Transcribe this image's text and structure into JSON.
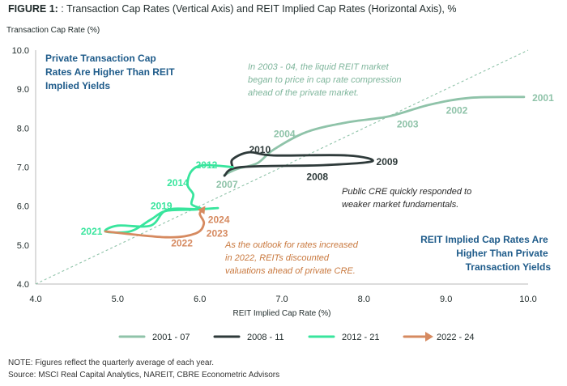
{
  "figure": {
    "label": "FIGURE 1:",
    "title": ": Transaction Cap Rates (Vertical Axis) and REIT Implied Cap Rates (Horizontal Axis), %"
  },
  "colors": {
    "s2001": "#8fc3a9",
    "s2008": "#2e3a3a",
    "s2012": "#38e59d",
    "s2022": "#d68a60",
    "axis_text": "#1f2a2a",
    "callout_blue": "#1e5b8a",
    "italic_teal": "#7fb69c",
    "italic_dark": "#2a2a2a",
    "italic_orange": "#c9793f",
    "diag": "#8fc3a9"
  },
  "chart_data": {
    "type": "line",
    "title": "Transaction Cap Rates (Vertical Axis) and REIT Implied Cap Rates (Horizontal Axis), %",
    "xlabel": "REIT Implied Cap Rate (%)",
    "ylabel": "Transaction Cap Rate (%)",
    "xlim": [
      4.0,
      10.0
    ],
    "ylim": [
      4.0,
      10.0
    ],
    "x_ticks": [
      "4.0",
      "5.0",
      "6.0",
      "7.0",
      "8.0",
      "9.0",
      "10.0"
    ],
    "y_ticks": [
      "4.0",
      "5.0",
      "6.0",
      "7.0",
      "8.0",
      "9.0",
      "10.0"
    ],
    "reference_line": {
      "label": "45-degree line",
      "from": [
        4.0,
        4.0
      ],
      "to": [
        10.0,
        10.0
      ]
    },
    "series": [
      {
        "name": "2001 - 07",
        "color_key": "s2001",
        "points": [
          [
            9.95,
            8.8
          ],
          [
            9.3,
            8.78
          ],
          [
            8.8,
            8.6
          ],
          [
            8.3,
            8.3
          ],
          [
            7.8,
            8.15
          ],
          [
            7.3,
            7.9
          ],
          [
            6.9,
            7.45
          ],
          [
            6.7,
            7.1
          ],
          [
            6.45,
            6.95
          ],
          [
            6.3,
            6.8
          ]
        ]
      },
      {
        "name": "2008 - 11",
        "color_key": "s2008",
        "points": [
          [
            6.3,
            6.78
          ],
          [
            6.5,
            7.0
          ],
          [
            7.5,
            7.05
          ],
          [
            8.1,
            7.15
          ],
          [
            7.8,
            7.3
          ],
          [
            6.9,
            7.3
          ],
          [
            6.6,
            7.38
          ],
          [
            6.4,
            7.2
          ],
          [
            6.4,
            7.0
          ]
        ]
      },
      {
        "name": "2012 - 21",
        "color_key": "s2012",
        "points": [
          [
            6.4,
            7.0
          ],
          [
            6.05,
            7.05
          ],
          [
            5.9,
            6.9
          ],
          [
            5.85,
            6.55
          ],
          [
            5.92,
            6.3
          ],
          [
            5.9,
            6.05
          ],
          [
            6.0,
            5.92
          ],
          [
            5.6,
            5.88
          ],
          [
            5.4,
            5.65
          ],
          [
            5.15,
            5.35
          ],
          [
            4.85,
            5.35
          ],
          [
            5.0,
            5.5
          ],
          [
            5.4,
            5.5
          ],
          [
            5.6,
            5.9
          ],
          [
            6.0,
            5.92
          ],
          [
            6.22,
            5.95
          ]
        ]
      },
      {
        "name": "2022 - 24",
        "color_key": "s2022",
        "points": [
          [
            4.85,
            5.35
          ],
          [
            5.6,
            5.2
          ],
          [
            5.95,
            5.3
          ],
          [
            6.05,
            5.55
          ],
          [
            6.0,
            5.8
          ],
          [
            6.05,
            5.95
          ]
        ]
      }
    ],
    "point_labels": [
      {
        "text": "2001",
        "x": 10.05,
        "y": 8.78,
        "color_key": "s2001",
        "anchor": "start"
      },
      {
        "text": "2002",
        "x": 9.0,
        "y": 8.45,
        "color_key": "s2001",
        "anchor": "start"
      },
      {
        "text": "2003",
        "x": 8.4,
        "y": 8.1,
        "color_key": "s2001",
        "anchor": "start"
      },
      {
        "text": "2004",
        "x": 6.9,
        "y": 7.85,
        "color_key": "s2001",
        "anchor": "start"
      },
      {
        "text": "2007",
        "x": 6.2,
        "y": 6.55,
        "color_key": "s2001",
        "anchor": "start"
      },
      {
        "text": "2010",
        "x": 6.6,
        "y": 7.45,
        "color_key": "s2008",
        "anchor": "start"
      },
      {
        "text": "2009",
        "x": 8.15,
        "y": 7.13,
        "color_key": "s2008",
        "anchor": "start"
      },
      {
        "text": "2008",
        "x": 7.3,
        "y": 6.75,
        "color_key": "s2008",
        "anchor": "start"
      },
      {
        "text": "2012",
        "x": 5.95,
        "y": 7.05,
        "color_key": "s2012",
        "anchor": "start"
      },
      {
        "text": "2014",
        "x": 5.6,
        "y": 6.6,
        "color_key": "s2012",
        "anchor": "start"
      },
      {
        "text": "2019",
        "x": 5.4,
        "y": 6.0,
        "color_key": "s2012",
        "anchor": "start"
      },
      {
        "text": "2021",
        "x": 4.55,
        "y": 5.35,
        "color_key": "s2012",
        "anchor": "start"
      },
      {
        "text": "2024",
        "x": 6.1,
        "y": 5.65,
        "color_key": "s2022",
        "anchor": "start"
      },
      {
        "text": "2023",
        "x": 6.08,
        "y": 5.3,
        "color_key": "s2022",
        "anchor": "start"
      },
      {
        "text": "2022",
        "x": 5.65,
        "y": 5.05,
        "color_key": "s2022",
        "anchor": "start"
      }
    ],
    "legend": {
      "placement": "bottom",
      "entries": [
        {
          "label": "2001 - 07",
          "color_key": "s2001",
          "marker": "line"
        },
        {
          "label": "2008 - 11",
          "color_key": "s2008",
          "marker": "line"
        },
        {
          "label": "2012 - 21",
          "color_key": "s2012",
          "marker": "line"
        },
        {
          "label": "2022 - 24",
          "color_key": "s2022",
          "marker": "arrow"
        }
      ]
    }
  },
  "annotations": {
    "top_left_callout": [
      "Private Transaction Cap",
      "Rates Are Higher Than REIT",
      "Implied Yields"
    ],
    "bottom_right_callout": [
      "REIT Implied Cap Rates Are",
      "Higher Than Private",
      "Transaction Yields"
    ],
    "italic_2003": [
      "In 2003 - 04, the liquid REIT market",
      "began to price in cap rate compression",
      "ahead of the private market."
    ],
    "italic_public": [
      "Public CRE quickly responded to",
      "weaker market fundamentals."
    ],
    "italic_outlook": [
      "As the outlook for rates increased",
      "in 2022, REITs discounted",
      "valuations ahead of private CRE."
    ]
  },
  "notes": {
    "note": "NOTE: Figures reflect the quarterly average of each year.",
    "source": "Source: MSCI Real Capital Analytics, NAREIT, CBRE Econometric Advisors"
  }
}
